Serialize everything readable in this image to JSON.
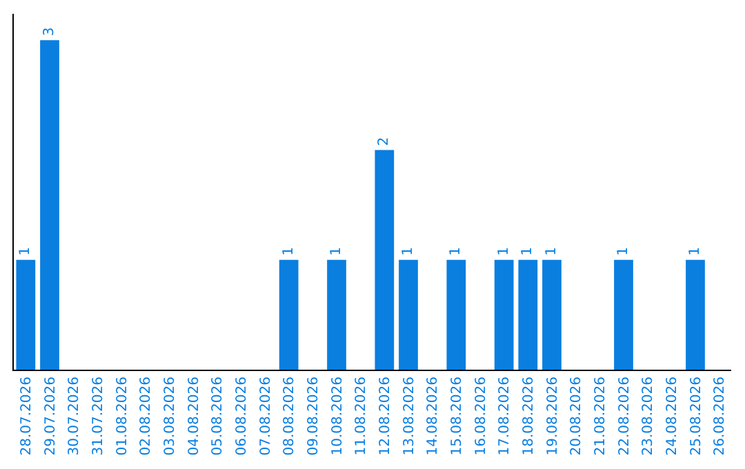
{
  "chart_data": {
    "type": "bar",
    "categories": [
      "28.07.2026",
      "29.07.2026",
      "30.07.2026",
      "31.07.2026",
      "01.08.2026",
      "02.08.2026",
      "03.08.2026",
      "04.08.2026",
      "05.08.2026",
      "06.08.2026",
      "07.08.2026",
      "08.08.2026",
      "09.08.2026",
      "10.08.2026",
      "11.08.2026",
      "12.08.2026",
      "13.08.2026",
      "14.08.2026",
      "15.08.2026",
      "16.08.2026",
      "17.08.2026",
      "18.08.2026",
      "19.08.2026",
      "20.08.2026",
      "21.08.2026",
      "22.08.2026",
      "23.08.2026",
      "24.08.2026",
      "25.08.2026",
      "26.08.2026"
    ],
    "values": [
      1,
      3,
      0,
      0,
      0,
      0,
      0,
      0,
      0,
      0,
      0,
      1,
      0,
      1,
      0,
      2,
      1,
      0,
      1,
      0,
      1,
      1,
      1,
      0,
      0,
      1,
      0,
      0,
      1,
      0
    ],
    "value_labels": [
      "1",
      "3",
      null,
      null,
      null,
      null,
      null,
      null,
      null,
      null,
      null,
      "1",
      null,
      "1",
      null,
      "2",
      "1",
      null,
      "1",
      null,
      "1",
      "1",
      "1",
      null,
      null,
      "1",
      null,
      null,
      "1",
      null
    ],
    "color": "#0a7fe0",
    "legend": false,
    "tick_labels": "x"
  }
}
